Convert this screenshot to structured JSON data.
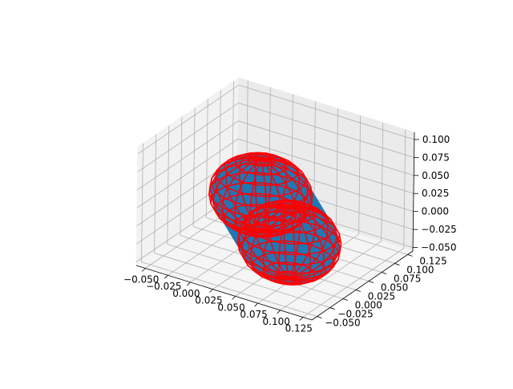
{
  "chart_data": {
    "type": "surface3d",
    "title": "",
    "xlabel": "",
    "ylabel": "",
    "zlabel": "",
    "x_ticks": [
      "−0.050",
      "−0.025",
      "0.000",
      "0.025",
      "0.050",
      "0.075",
      "0.100",
      "0.125"
    ],
    "y_ticks": [
      "−0.050",
      "−0.025",
      "0.000",
      "0.025",
      "0.050",
      "0.075",
      "0.100",
      "0.125"
    ],
    "z_ticks": [
      "−0.050",
      "−0.025",
      "0.000",
      "0.025",
      "0.050",
      "0.075",
      "0.100"
    ],
    "xlim": [
      -0.06,
      0.135
    ],
    "ylim": [
      -0.06,
      0.135
    ],
    "zlim": [
      -0.055,
      0.11
    ],
    "grid": true,
    "series": [
      {
        "kind": "solid-surface",
        "shape": "capsule",
        "color": "#1f77b4",
        "segment_start": [
          0.0,
          0.075,
          0.0
        ],
        "segment_end": [
          0.075,
          0.0,
          0.0
        ],
        "radius": 0.05
      },
      {
        "kind": "wireframe-sphere",
        "color": "#ff0000",
        "center": [
          0.0,
          0.075,
          0.0
        ],
        "radius": 0.05
      },
      {
        "kind": "wireframe-sphere",
        "color": "#ff0000",
        "center": [
          0.075,
          0.0,
          0.0
        ],
        "radius": 0.05
      }
    ]
  }
}
